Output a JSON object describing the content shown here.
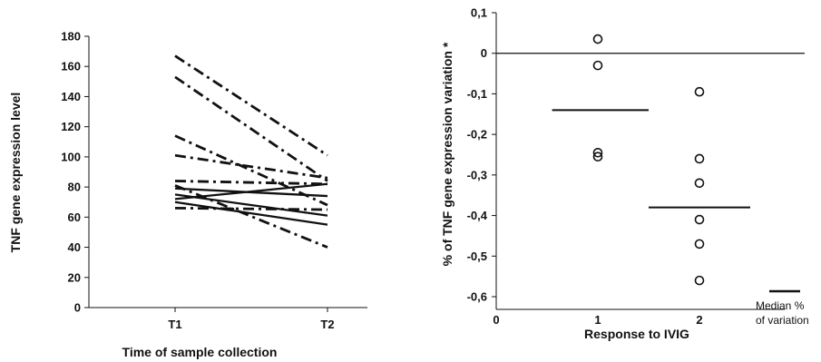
{
  "chart_data": [
    {
      "type": "line",
      "title": "",
      "xlabel": "Time of sample collection",
      "ylabel": "TNF gene expression level",
      "categories": [
        "T1",
        "T2"
      ],
      "ylim": [
        0,
        180
      ],
      "yticks": [
        "0",
        "20",
        "40",
        "60",
        "80",
        "100",
        "120",
        "140",
        "160",
        "180"
      ],
      "series": [
        {
          "style": "solid",
          "values": [
            72,
            82
          ]
        },
        {
          "style": "solid",
          "values": [
            79,
            74
          ]
        },
        {
          "style": "solid",
          "values": [
            75,
            61
          ]
        },
        {
          "style": "solid",
          "values": [
            70,
            55
          ]
        },
        {
          "style": "dashdot",
          "values": [
            167,
            101
          ]
        },
        {
          "style": "dashdot",
          "values": [
            153,
            84
          ]
        },
        {
          "style": "dashdot",
          "values": [
            114,
            68
          ]
        },
        {
          "style": "dashdot",
          "values": [
            101,
            86
          ]
        },
        {
          "style": "dashdot",
          "values": [
            84,
            82
          ]
        },
        {
          "style": "dashdot",
          "values": [
            81,
            40
          ]
        },
        {
          "style": "dashdot",
          "values": [
            66,
            65
          ]
        }
      ],
      "line_color": "#111111"
    },
    {
      "type": "scatter",
      "title": "",
      "xlabel": "Response to  IVIG",
      "ylabel": "% of TNF gene expression variation *",
      "xlim": [
        0,
        3
      ],
      "ylim": [
        -0.6,
        0.1
      ],
      "xticks": [
        "0",
        "1",
        "2"
      ],
      "yticks": [
        "0,1",
        "0",
        "-0,1",
        "-0,2",
        "-0,3",
        "-0,4",
        "-0,5",
        "-0,6"
      ],
      "points": [
        {
          "x": 1,
          "y": 0.035
        },
        {
          "x": 1,
          "y": -0.03
        },
        {
          "x": 1,
          "y": -0.245
        },
        {
          "x": 1,
          "y": -0.255
        },
        {
          "x": 2,
          "y": -0.095
        },
        {
          "x": 2,
          "y": -0.26
        },
        {
          "x": 2,
          "y": -0.32
        },
        {
          "x": 2,
          "y": -0.41
        },
        {
          "x": 2,
          "y": -0.47
        },
        {
          "x": 2,
          "y": -0.56
        }
      ],
      "medians": [
        {
          "x_from": 0.55,
          "x_to": 1.5,
          "y": -0.14
        },
        {
          "x_from": 1.5,
          "x_to": 2.5,
          "y": -0.38
        }
      ],
      "zero_line": 0,
      "legend": {
        "label_line1": "Median %",
        "label_line2": "of variation"
      },
      "marker_color": "#111111"
    }
  ]
}
